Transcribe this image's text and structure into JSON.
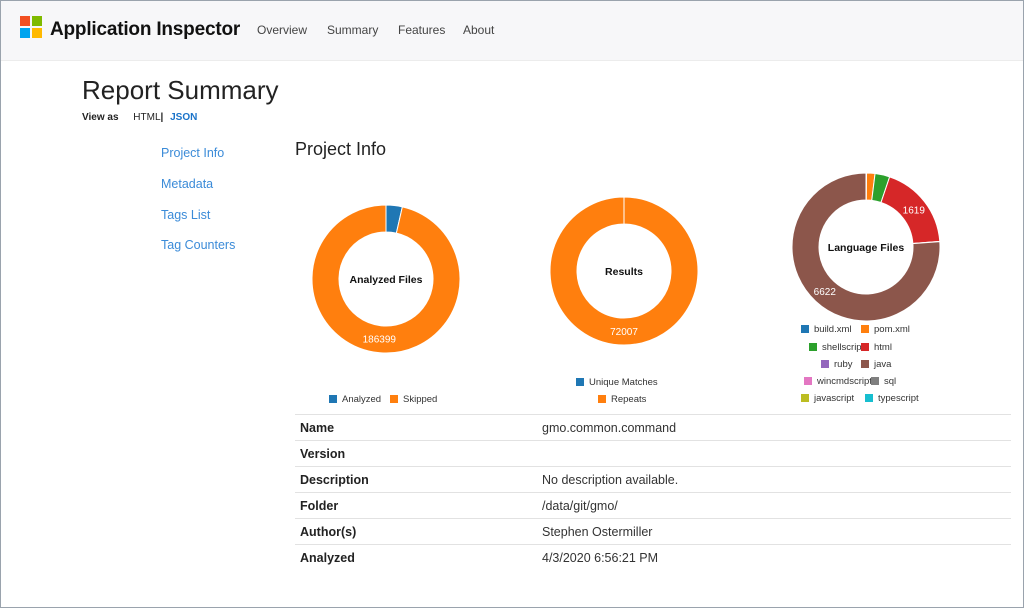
{
  "navbar": {
    "brand": "Application Inspector",
    "links": [
      "Overview",
      "Summary",
      "Features",
      "About"
    ]
  },
  "page": {
    "title": "Report Summary",
    "view_as_label": "View as",
    "view_as_html": "HTML",
    "view_as_sep": "|",
    "view_as_json": "JSON"
  },
  "sidebar": {
    "items": [
      "Project Info",
      "Metadata",
      "Tags List",
      "Tag Counters"
    ]
  },
  "section": {
    "title": "Project Info"
  },
  "chart_data": [
    {
      "type": "pie",
      "title": "Analyzed Files",
      "categories": [
        "Analyzed",
        "Skipped"
      ],
      "values": [
        6850,
        186399
      ],
      "colors": [
        "#1f77b4",
        "#ff7f0e"
      ],
      "data_labels": [
        "",
        "186399"
      ]
    },
    {
      "type": "pie",
      "title": "Results",
      "categories": [
        "Unique Matches",
        "Repeats"
      ],
      "values": [
        0,
        72007
      ],
      "colors": [
        "#1f77b4",
        "#ff7f0e"
      ],
      "data_labels": [
        "",
        "72007"
      ]
    },
    {
      "type": "pie",
      "title": "Language Files",
      "categories": [
        "build.xml",
        "pom.xml",
        "shellscript",
        "html",
        "ruby",
        "java",
        "wincmdscript",
        "sql",
        "javascript",
        "typescript"
      ],
      "values": [
        10,
        160,
        280,
        1619,
        5,
        6622,
        0,
        0,
        0,
        0
      ],
      "colors": [
        "#1f77b4",
        "#ff7f0e",
        "#2ca02c",
        "#d62728",
        "#9467bd",
        "#8c564b",
        "#e377c2",
        "#7f7f7f",
        "#bcbd22",
        "#17becf"
      ],
      "data_labels": [
        "",
        "",
        "",
        "1619",
        "",
        "6622",
        "",
        "",
        "",
        ""
      ]
    }
  ],
  "project_info": {
    "rows": [
      {
        "key": "Name",
        "value": "gmo.common.command"
      },
      {
        "key": "Version",
        "value": ""
      },
      {
        "key": "Description",
        "value": "No description available."
      },
      {
        "key": "Folder",
        "value": "/data/git/gmo/"
      },
      {
        "key": "Author(s)",
        "value": "Stephen Ostermiller"
      },
      {
        "key": "Analyzed",
        "value": "4/3/2020 6:56:21 PM"
      }
    ]
  }
}
